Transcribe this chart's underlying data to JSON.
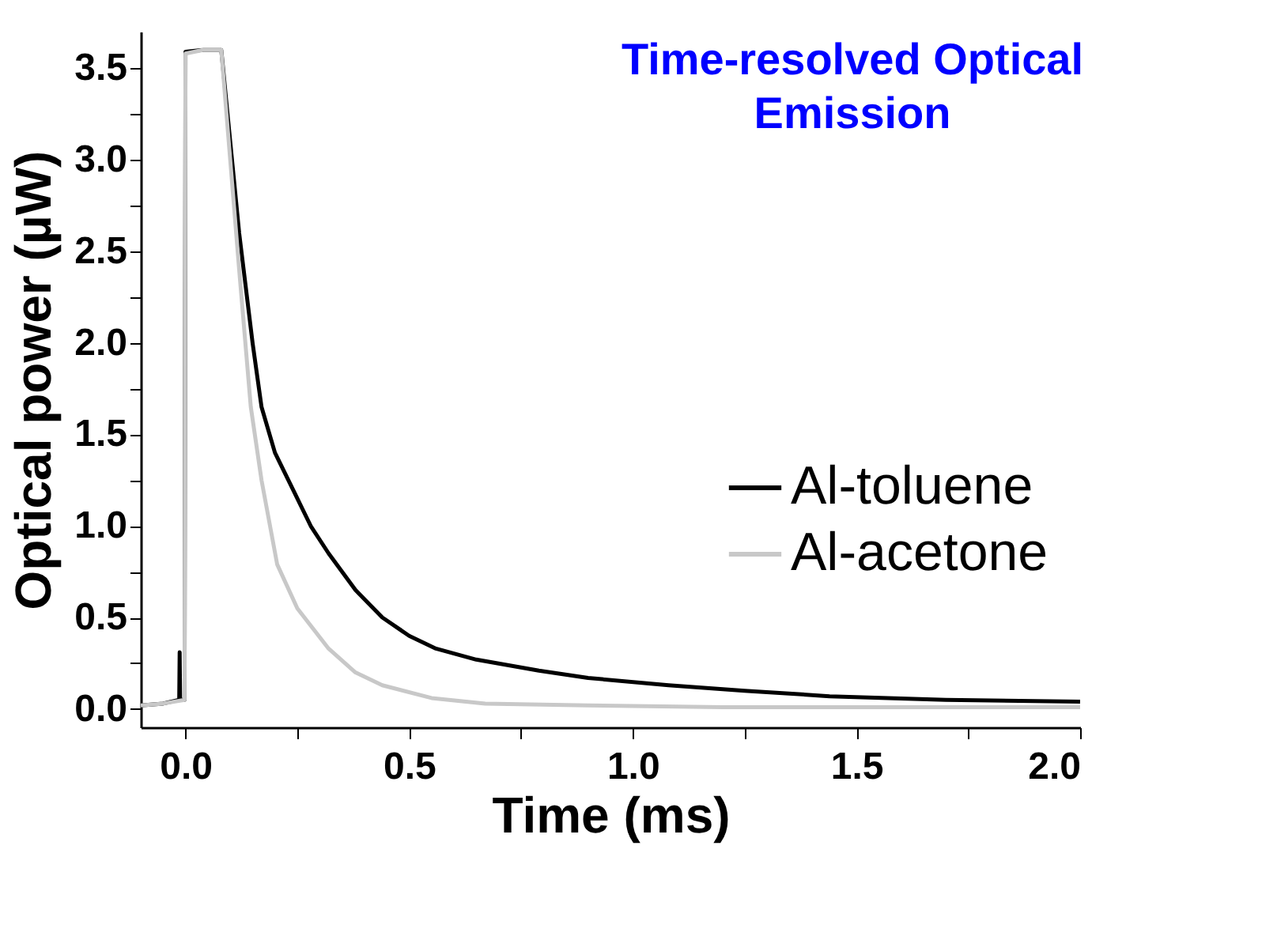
{
  "chart_data": {
    "type": "line",
    "title": "Time-resolved Optical Emission",
    "xlabel": "Time (ms)",
    "ylabel": "Optical power (µW)",
    "xlim": [
      -0.1,
      2.0
    ],
    "ylim": [
      -0.1,
      3.7
    ],
    "xticks": [
      {
        "value": 0.0,
        "label": "0.0"
      },
      {
        "value": 0.25,
        "label": null
      },
      {
        "value": 0.5,
        "label": "0.5"
      },
      {
        "value": 0.75,
        "label": null
      },
      {
        "value": 1.0,
        "label": "1.0"
      },
      {
        "value": 1.25,
        "label": null
      },
      {
        "value": 1.5,
        "label": "1.5"
      },
      {
        "value": 1.75,
        "label": null
      },
      {
        "value": 2.0,
        "label": "2.0"
      }
    ],
    "yticks": [
      {
        "value": 0.0,
        "label": "0.0"
      },
      {
        "value": 0.25,
        "label": null
      },
      {
        "value": 0.5,
        "label": "0.5"
      },
      {
        "value": 0.75,
        "label": null
      },
      {
        "value": 1.0,
        "label": "1.0"
      },
      {
        "value": 1.25,
        "label": null
      },
      {
        "value": 1.5,
        "label": "1.5"
      },
      {
        "value": 1.75,
        "label": null
      },
      {
        "value": 2.0,
        "label": "2.0"
      },
      {
        "value": 2.25,
        "label": null
      },
      {
        "value": 2.5,
        "label": "2.5"
      },
      {
        "value": 2.75,
        "label": null
      },
      {
        "value": 3.0,
        "label": "3.0"
      },
      {
        "value": 3.25,
        "label": null
      },
      {
        "value": 3.5,
        "label": "3.5"
      }
    ],
    "grid": false,
    "legend": "right",
    "line_style": "solid",
    "marker": "none",
    "series": [
      {
        "name": "Al-toluene",
        "color": "#000000",
        "x": [
          -0.1,
          -0.05,
          -0.014,
          -0.013,
          -0.012,
          -0.002,
          0.0,
          0.04,
          0.08,
          0.1,
          0.12,
          0.15,
          0.17,
          0.2,
          0.24,
          0.28,
          0.32,
          0.38,
          0.44,
          0.5,
          0.56,
          0.65,
          0.79,
          0.9,
          1.08,
          1.25,
          1.44,
          1.7,
          2.0
        ],
        "values": [
          0.02,
          0.03,
          0.05,
          0.31,
          0.05,
          0.05,
          3.59,
          3.6,
          3.6,
          3.1,
          2.6,
          2.0,
          1.65,
          1.4,
          1.2,
          1.0,
          0.85,
          0.65,
          0.5,
          0.4,
          0.33,
          0.27,
          0.21,
          0.17,
          0.13,
          0.1,
          0.07,
          0.05,
          0.04
        ]
      },
      {
        "name": "Al-acetone",
        "color": "#c8c8c8",
        "x": [
          -0.1,
          -0.05,
          -0.002,
          0.0,
          0.04,
          0.08,
          0.1,
          0.12,
          0.146,
          0.17,
          0.205,
          0.25,
          0.32,
          0.38,
          0.44,
          0.55,
          0.67,
          0.9,
          1.2,
          1.6,
          2.0
        ],
        "values": [
          0.02,
          0.03,
          0.05,
          3.58,
          3.6,
          3.6,
          3.0,
          2.4,
          1.65,
          1.25,
          0.79,
          0.55,
          0.33,
          0.2,
          0.13,
          0.06,
          0.03,
          0.02,
          0.01,
          0.01,
          0.01
        ]
      }
    ]
  }
}
